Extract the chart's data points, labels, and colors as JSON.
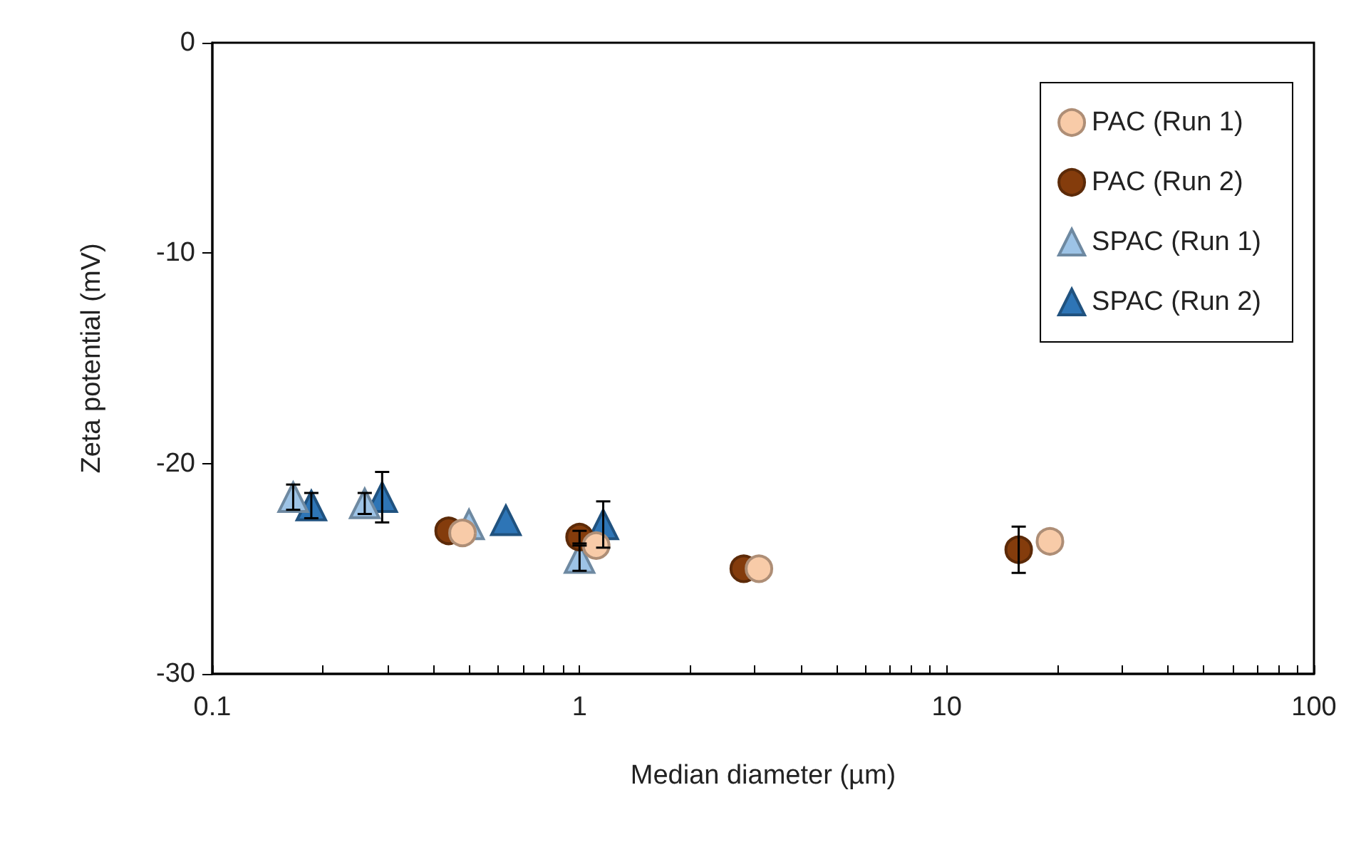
{
  "chart_data": {
    "type": "scatter",
    "xlabel": "Median diameter (µm)",
    "ylabel": "Zeta potential (mV)",
    "log": "x",
    "xlim": [
      0.1,
      100
    ],
    "xticks": [
      0.1,
      1,
      10,
      100
    ],
    "ylim": [
      -30,
      0
    ],
    "yticks": [
      -30,
      -20,
      -10,
      0
    ],
    "grid": false,
    "legend": "top right",
    "series": [
      {
        "name": "PAC (Run 1)",
        "color": "#f8cba8",
        "marker": "circle",
        "x": [
          0.48,
          1.11,
          3.08,
          19.1
        ],
        "values": [
          -23.3,
          -23.9,
          -25.0,
          -23.7
        ],
        "errors": [
          null,
          null,
          null,
          null
        ]
      },
      {
        "name": "PAC (Run 2)",
        "color": "#843c0c",
        "marker": "circle",
        "x": [
          0.44,
          1.0,
          2.8,
          15.7
        ],
        "values": [
          -23.2,
          -23.5,
          -25.0,
          -24.1
        ],
        "errors": [
          null,
          0.3,
          null,
          1.1
        ]
      },
      {
        "name": "SPAC (Run 1)",
        "color": "#9dc3e6",
        "marker": "triangle",
        "x": [
          0.166,
          0.26,
          0.5,
          1.0
        ],
        "values": [
          -21.6,
          -21.9,
          -22.9,
          -24.5
        ],
        "errors": [
          0.6,
          0.5,
          null,
          0.6
        ]
      },
      {
        "name": "SPAC (Run 2)",
        "color": "#2e75b6",
        "marker": "triangle",
        "x": [
          0.186,
          0.29,
          0.63,
          1.16
        ],
        "values": [
          -22.0,
          -21.6,
          -22.7,
          -22.9
        ],
        "errors": [
          0.6,
          1.2,
          null,
          1.1
        ]
      }
    ]
  }
}
